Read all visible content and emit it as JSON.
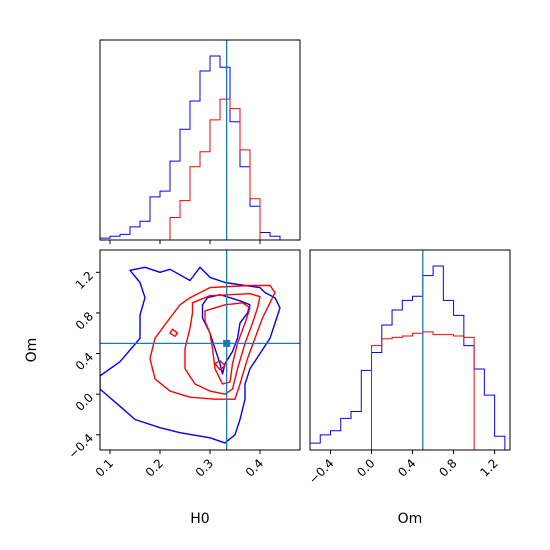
{
  "chart_data": [
    {
      "panel": "H0 marginal",
      "type": "histogram",
      "xlim": [
        0.08,
        0.48
      ],
      "bin_edges": [
        0.08,
        0.1,
        0.12,
        0.14,
        0.16,
        0.18,
        0.2,
        0.22,
        0.24,
        0.26,
        0.28,
        0.3,
        0.32,
        0.34,
        0.36,
        0.38,
        0.4,
        0.42,
        0.44,
        0.46,
        0.48
      ],
      "series": [
        {
          "color": "#0000ff",
          "counts": [
            1,
            2,
            3,
            7,
            10,
            23,
            26,
            42,
            59,
            74,
            90,
            98,
            92,
            63,
            39,
            18,
            4,
            2,
            0,
            0
          ]
        },
        {
          "color": "#ff0000",
          "counts": [
            0,
            0,
            0,
            0,
            0,
            0,
            0,
            12,
            21,
            39,
            47,
            64,
            75,
            70,
            48,
            22,
            0,
            0,
            0,
            0
          ]
        }
      ],
      "truth_line": {
        "H0": 0.3333
      },
      "x_ticks": [
        0.1,
        0.2,
        0.3,
        0.4
      ]
    },
    {
      "panel": "Om marginal",
      "type": "histogram",
      "xlabel": "Om",
      "xlim": [
        -0.6,
        1.35
      ],
      "bin_edges": [
        -0.6,
        -0.5,
        -0.4,
        -0.3,
        -0.2,
        -0.1,
        0.0,
        0.1,
        0.2,
        0.3,
        0.4,
        0.5,
        0.6,
        0.7,
        0.8,
        0.9,
        1.0,
        1.1,
        1.2,
        1.3
      ],
      "series": [
        {
          "color": "#0000ff",
          "counts": [
            5,
            11,
            14,
            23,
            28,
            58,
            71,
            91,
            102,
            109,
            112,
            127,
            134,
            109,
            98,
            76,
            59,
            40,
            10
          ]
        },
        {
          "color": "#ff0000",
          "counts": [
            0,
            0,
            0,
            0,
            0,
            0,
            76,
            81,
            82,
            83,
            85,
            86,
            84,
            84,
            83,
            82,
            0,
            0,
            0
          ]
        }
      ],
      "truth_line": {
        "Om": 0.5
      },
      "x_ticks": [
        -0.4,
        0.0,
        0.4,
        0.8,
        1.2
      ],
      "x_tick_labels": [
        "−0.4",
        "0.0",
        "0.4",
        "0.8",
        "1.2"
      ]
    },
    {
      "panel": "joint H0 vs Om",
      "type": "contour",
      "xlabel": "H0",
      "ylabel": "Om",
      "xlim": [
        0.08,
        0.48
      ],
      "ylim": [
        -0.55,
        1.42
      ],
      "x_ticks": [
        0.1,
        0.2,
        0.3,
        0.4
      ],
      "y_ticks": [
        -0.4,
        0.0,
        0.4,
        0.8,
        1.2
      ],
      "y_tick_labels": [
        "−0.4",
        "0.0",
        "0.4",
        "0.8",
        "1.2"
      ],
      "truth": {
        "H0": 0.3333,
        "Om": 0.5
      },
      "series": [
        {
          "color": "#0000ff",
          "contours": [
            [
              [
                0.33,
                -0.48
              ],
              [
                0.3,
                -0.43
              ],
              [
                0.24,
                -0.38
              ],
              [
                0.2,
                -0.33
              ],
              [
                0.15,
                -0.25
              ],
              [
                0.12,
                -0.12
              ],
              [
                0.08,
                0.05
              ],
              [
                0.08,
                0.18
              ],
              [
                0.12,
                0.32
              ],
              [
                0.16,
                0.55
              ],
              [
                0.16,
                0.78
              ],
              [
                0.17,
                0.95
              ],
              [
                0.16,
                1.1
              ],
              [
                0.14,
                1.22
              ],
              [
                0.17,
                1.25
              ],
              [
                0.2,
                1.2
              ],
              [
                0.22,
                1.23
              ],
              [
                0.26,
                1.12
              ],
              [
                0.28,
                1.25
              ],
              [
                0.3,
                1.15
              ],
              [
                0.33,
                1.1
              ],
              [
                0.37,
                1.07
              ],
              [
                0.4,
                1.05
              ],
              [
                0.41,
                1.0
              ],
              [
                0.43,
                0.95
              ],
              [
                0.44,
                0.85
              ],
              [
                0.43,
                0.7
              ],
              [
                0.42,
                0.55
              ],
              [
                0.4,
                0.4
              ],
              [
                0.38,
                0.25
              ],
              [
                0.37,
                0.1
              ],
              [
                0.37,
                -0.05
              ],
              [
                0.36,
                -0.25
              ],
              [
                0.35,
                -0.4
              ],
              [
                0.33,
                -0.48
              ]
            ],
            [
              [
                0.295,
                0.95
              ],
              [
                0.32,
                0.98
              ],
              [
                0.34,
                0.95
              ],
              [
                0.36,
                0.92
              ],
              [
                0.38,
                0.88
              ],
              [
                0.375,
                0.8
              ],
              [
                0.36,
                0.7
              ],
              [
                0.355,
                0.55
              ],
              [
                0.345,
                0.42
              ],
              [
                0.33,
                0.3
              ],
              [
                0.325,
                0.2
              ],
              [
                0.32,
                0.3
              ],
              [
                0.31,
                0.45
              ],
              [
                0.3,
                0.6
              ],
              [
                0.285,
                0.75
              ],
              [
                0.285,
                0.88
              ],
              [
                0.295,
                0.95
              ]
            ]
          ]
        },
        {
          "color": "#ff0000",
          "contours": [
            [
              [
                0.26,
                0.95
              ],
              [
                0.3,
                1.05
              ],
              [
                0.34,
                1.06
              ],
              [
                0.38,
                1.07
              ],
              [
                0.42,
                1.07
              ],
              [
                0.43,
                1.0
              ],
              [
                0.42,
                0.9
              ],
              [
                0.405,
                0.75
              ],
              [
                0.39,
                0.55
              ],
              [
                0.375,
                0.35
              ],
              [
                0.36,
                0.1
              ],
              [
                0.35,
                -0.05
              ],
              [
                0.31,
                -0.05
              ],
              [
                0.26,
                -0.03
              ],
              [
                0.22,
                0.03
              ],
              [
                0.19,
                0.15
              ],
              [
                0.18,
                0.35
              ],
              [
                0.19,
                0.55
              ],
              [
                0.22,
                0.75
              ],
              [
                0.24,
                0.88
              ],
              [
                0.26,
                0.95
              ]
            ],
            [
              [
                0.265,
                0.9
              ],
              [
                0.3,
                0.97
              ],
              [
                0.34,
                0.98
              ],
              [
                0.38,
                0.99
              ],
              [
                0.4,
                0.96
              ],
              [
                0.395,
                0.85
              ],
              [
                0.385,
                0.7
              ],
              [
                0.37,
                0.5
              ],
              [
                0.355,
                0.25
              ],
              [
                0.345,
                0.05
              ],
              [
                0.33,
                0.0
              ],
              [
                0.3,
                0.03
              ],
              [
                0.27,
                0.1
              ],
              [
                0.25,
                0.25
              ],
              [
                0.25,
                0.45
              ],
              [
                0.26,
                0.65
              ],
              [
                0.265,
                0.8
              ],
              [
                0.265,
                0.9
              ]
            ],
            [
              [
                0.29,
                0.82
              ],
              [
                0.33,
                0.88
              ],
              [
                0.365,
                0.9
              ],
              [
                0.38,
                0.85
              ],
              [
                0.37,
                0.7
              ],
              [
                0.355,
                0.5
              ],
              [
                0.345,
                0.3
              ],
              [
                0.34,
                0.12
              ],
              [
                0.325,
                0.1
              ],
              [
                0.31,
                0.25
              ],
              [
                0.305,
                0.45
              ],
              [
                0.3,
                0.6
              ],
              [
                0.29,
                0.72
              ],
              [
                0.29,
                0.82
              ]
            ],
            [
              [
                0.225,
                0.64
              ],
              [
                0.235,
                0.6
              ],
              [
                0.23,
                0.57
              ],
              [
                0.22,
                0.6
              ],
              [
                0.225,
                0.64
              ]
            ],
            [
              [
                0.31,
                0.3
              ],
              [
                0.32,
                0.33
              ],
              [
                0.33,
                0.28
              ],
              [
                0.32,
                0.24
              ],
              [
                0.31,
                0.3
              ]
            ]
          ]
        }
      ]
    }
  ]
}
